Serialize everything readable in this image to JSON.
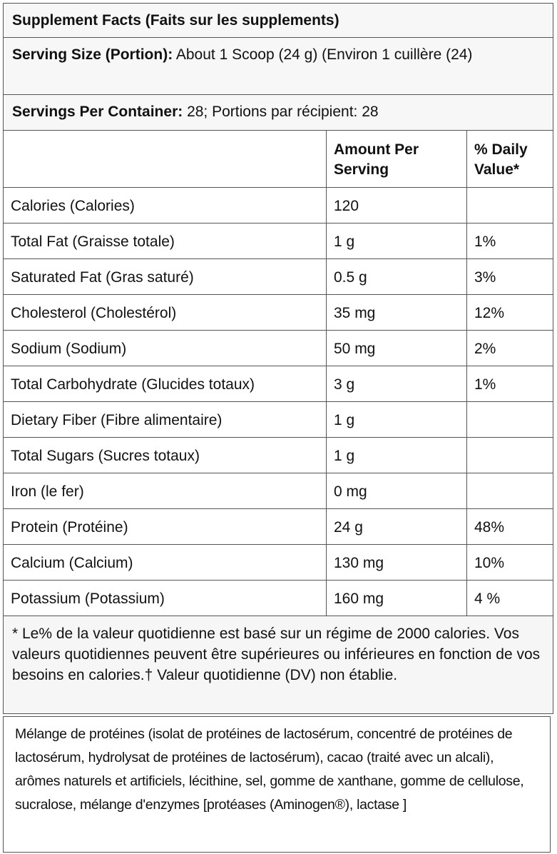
{
  "title": "Supplement Facts (Faits sur les supplements)",
  "serving_size": {
    "label": "Serving Size (Portion):",
    "value": "About 1 Scoop (24 g) (Environ 1 cuillère (24)"
  },
  "servings_per_container": {
    "label": "Servings Per Container:",
    "value": "28; Portions par récipient: 28"
  },
  "columns": [
    "",
    "Amount Per Serving",
    "% Daily Value*"
  ],
  "rows": [
    {
      "name": "Calories (Calories)",
      "amount": "120",
      "dv": ""
    },
    {
      "name": "Total Fat (Graisse totale)",
      "amount": "1 g",
      "dv": "1%"
    },
    {
      "name": "Saturated Fat (Gras saturé)",
      "amount": "0.5 g",
      "dv": "3%"
    },
    {
      "name": "Cholesterol (Cholestérol)",
      "amount": "35 mg",
      "dv": "12%"
    },
    {
      "name": "Sodium (Sodium)",
      "amount": "50 mg",
      "dv": "2%"
    },
    {
      "name": "Total Carbohydrate (Glucides totaux)",
      "amount": "3 g",
      "dv": "1%"
    },
    {
      "name": "Dietary Fiber (Fibre alimentaire)",
      "amount": "1 g",
      "dv": ""
    },
    {
      "name": "Total Sugars (Sucres totaux)",
      "amount": "1 g",
      "dv": ""
    },
    {
      "name": "Iron (le fer)",
      "amount": "0 mg",
      "dv": ""
    },
    {
      "name": "Protein (Protéine)",
      "amount": "24 g",
      "dv": "48%"
    },
    {
      "name": "Calcium (Calcium)",
      "amount": "130 mg",
      "dv": "10%"
    },
    {
      "name": "Potassium (Potassium)",
      "amount": "160 mg",
      "dv": "4 %"
    }
  ],
  "footnote": "* Le% de la valeur quotidienne est basé sur un régime de 2000 calories. Vos valeurs quotidiennes peuvent être supérieures ou inférieures en fonction de vos besoins en calories.† Valeur quotidienne (DV) non établie.",
  "ingredients": "Mélange de protéines (isolat de protéines de lactosérum, concentré de protéines de lactosérum, hydrolysat de protéines de lactosérum), cacao (traité avec un alcali), arômes naturels et artificiels, lécithine, sel, gomme de xanthane, gomme de cellulose, sucralose, mélange d'enzymes [protéases (Aminogen®), lactase ]"
}
